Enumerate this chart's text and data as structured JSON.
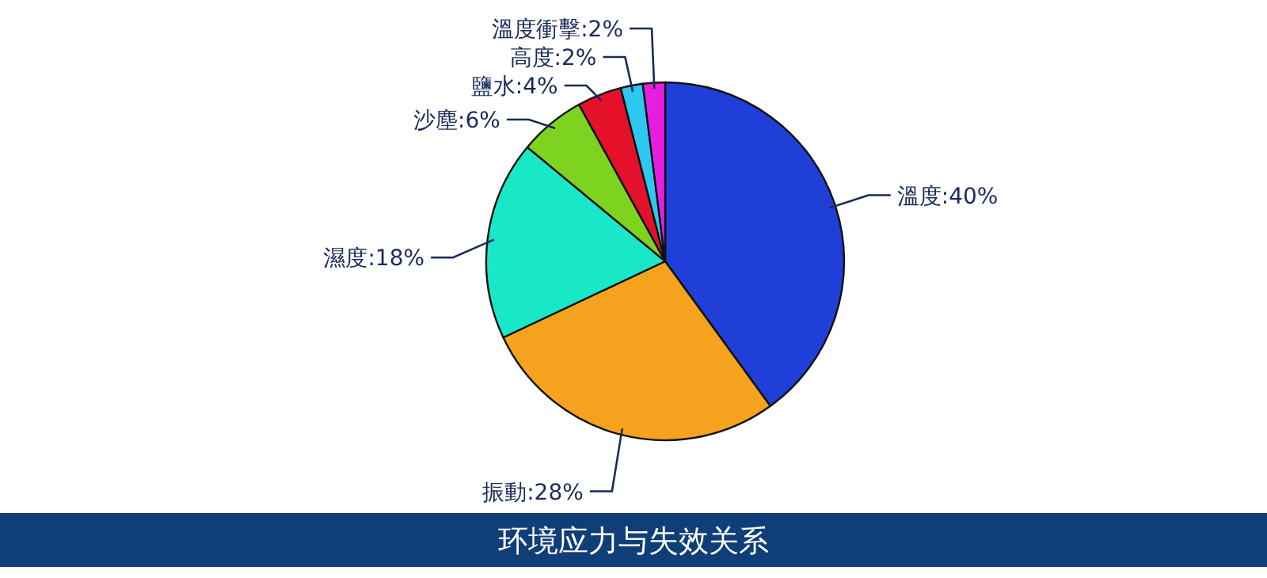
{
  "chart_data": {
    "type": "pie",
    "title": "环境应力与失效关系",
    "categories": [
      "溫度:40%",
      "振動:28%",
      "濕度:18%",
      "沙塵:6%",
      "鹽水:4%",
      "高度:2%",
      "溫度衝擊:2%"
    ],
    "values": [
      40,
      28,
      18,
      6,
      4,
      2,
      2
    ],
    "colors": [
      "#1f3fd8",
      "#f5a21e",
      "#19e8c8",
      "#7ed321",
      "#e5102a",
      "#2cc8f0",
      "#e61ee0"
    ]
  }
}
